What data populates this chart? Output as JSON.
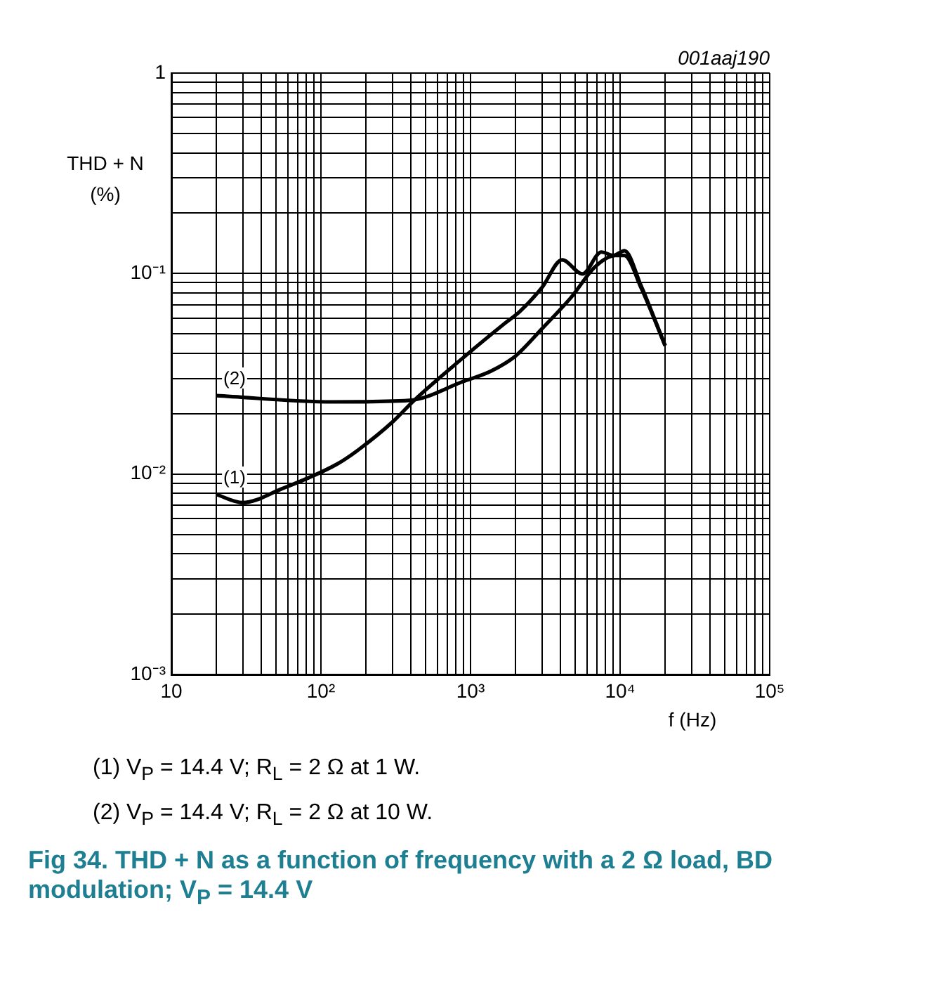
{
  "chart_data": {
    "type": "line",
    "xlabel": "f (Hz)",
    "ylabel": "THD + N (%)",
    "log": "xy",
    "grid": true,
    "legend": false,
    "marker": "none",
    "line_style": "solid",
    "xlim": [
      10,
      100000
    ],
    "ylim": [
      0.001,
      1
    ],
    "xticks": [
      10,
      {
        "value": 20,
        "label": null
      },
      {
        "value": 30,
        "label": null
      },
      {
        "value": 40,
        "label": null
      },
      {
        "value": 50,
        "label": null
      },
      {
        "value": 60,
        "label": null
      },
      {
        "value": 70,
        "label": null
      },
      {
        "value": 80,
        "label": null
      },
      {
        "value": 90,
        "label": null
      },
      {
        "value": 100,
        "label": "10²"
      },
      {
        "value": 200,
        "label": null
      },
      {
        "value": 300,
        "label": null
      },
      {
        "value": 400,
        "label": null
      },
      {
        "value": 500,
        "label": null
      },
      {
        "value": 600,
        "label": null
      },
      {
        "value": 700,
        "label": null
      },
      {
        "value": 800,
        "label": null
      },
      {
        "value": 900,
        "label": null
      },
      {
        "value": 1000,
        "label": "10³"
      },
      {
        "value": 2000,
        "label": null
      },
      {
        "value": 3000,
        "label": null
      },
      {
        "value": 4000,
        "label": null
      },
      {
        "value": 5000,
        "label": null
      },
      {
        "value": 6000,
        "label": null
      },
      {
        "value": 7000,
        "label": null
      },
      {
        "value": 8000,
        "label": null
      },
      {
        "value": 9000,
        "label": null
      },
      {
        "value": 10000,
        "label": "10⁴"
      },
      {
        "value": 20000,
        "label": null
      },
      {
        "value": 30000,
        "label": null
      },
      {
        "value": 40000,
        "label": null
      },
      {
        "value": 50000,
        "label": null
      },
      {
        "value": 60000,
        "label": null
      },
      {
        "value": 70000,
        "label": null
      },
      {
        "value": 80000,
        "label": null
      },
      {
        "value": 90000,
        "label": null
      },
      {
        "value": 100000,
        "label": "10⁵"
      }
    ],
    "yticks": [
      {
        "value": 0.001,
        "label": "10⁻³"
      },
      {
        "value": 0.002,
        "label": null
      },
      {
        "value": 0.003,
        "label": null
      },
      {
        "value": 0.004,
        "label": null
      },
      {
        "value": 0.005,
        "label": null
      },
      {
        "value": 0.006,
        "label": null
      },
      {
        "value": 0.007,
        "label": null
      },
      {
        "value": 0.008,
        "label": null
      },
      {
        "value": 0.009,
        "label": null
      },
      {
        "value": 0.01,
        "label": "10⁻²"
      },
      {
        "value": 0.02,
        "label": null
      },
      {
        "value": 0.03,
        "label": null
      },
      {
        "value": 0.04,
        "label": null
      },
      {
        "value": 0.05,
        "label": null
      },
      {
        "value": 0.06,
        "label": null
      },
      {
        "value": 0.07,
        "label": null
      },
      {
        "value": 0.08,
        "label": null
      },
      {
        "value": 0.09,
        "label": null
      },
      {
        "value": 0.1,
        "label": "10⁻¹"
      },
      {
        "value": 0.2,
        "label": null
      },
      {
        "value": 0.3,
        "label": null
      },
      {
        "value": 0.4,
        "label": null
      },
      {
        "value": 0.5,
        "label": null
      },
      {
        "value": 0.6,
        "label": null
      },
      {
        "value": 0.7,
        "label": null
      },
      {
        "value": 0.8,
        "label": null
      },
      {
        "value": 0.9,
        "label": null
      },
      1
    ],
    "series": [
      {
        "name": "(1)",
        "color": "#000000",
        "x": [
          20,
          30,
          54,
          128,
          178,
          304,
          420,
          885,
          1700,
          2130,
          3000,
          4100,
          5600,
          7500,
          9000,
          10700,
          13800,
          20000
        ],
        "values": [
          0.0079,
          0.0072,
          0.0084,
          0.0112,
          0.0132,
          0.0183,
          0.0233,
          0.0378,
          0.0565,
          0.0645,
          0.085,
          0.117,
          0.0995,
          0.128,
          0.123,
          0.13,
          0.087,
          0.0437
        ]
      },
      {
        "name": "(2)",
        "color": "#000000",
        "x": [
          20,
          119,
          390,
          890,
          1380,
          2000,
          3050,
          4700,
          6800,
          9300,
          10700,
          13800,
          20000
        ],
        "values": [
          0.0246,
          0.0229,
          0.0233,
          0.0289,
          0.0327,
          0.0388,
          0.0537,
          0.076,
          0.108,
          0.123,
          0.123,
          0.085,
          0.0437
        ]
      }
    ],
    "annotations": [
      "001aaj190",
      "(1) V$_{P}$ = 14.4 V; R$_{L}$ = 2 Ω at 1 W.",
      "(2) V$_{P}$ = 14.4 V; R$_{L}$ = 2 Ω at 10 W.",
      "Fig 34. THD + N as a function of frequency with a 2 Ω load, BD modulation; V$_{P}$ = 14.4 V"
    ]
  }
}
